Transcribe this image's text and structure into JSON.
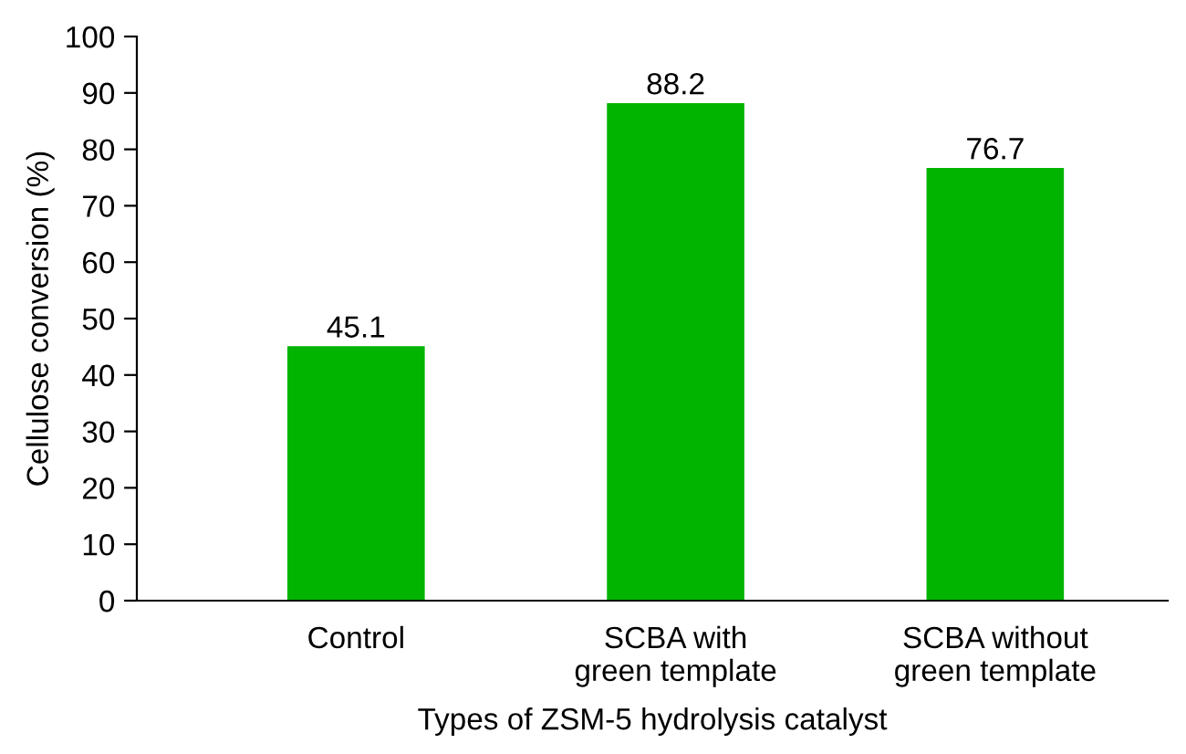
{
  "chart_data": {
    "type": "bar",
    "categories": [
      "Control",
      "SCBA with\ngreen template",
      "SCBA without\ngreen template"
    ],
    "values": [
      45.1,
      88.2,
      76.7
    ],
    "color": "#00b400",
    "xlabel": "Types of ZSM-5 hydrolysis catalyst",
    "ylabel": "Cellulose conversion (%)",
    "ylim": [
      0,
      100
    ],
    "yticks": [
      0,
      10,
      20,
      30,
      40,
      50,
      60,
      70,
      80,
      90,
      100
    ],
    "data_labels": true,
    "grid": false,
    "legend": false
  }
}
